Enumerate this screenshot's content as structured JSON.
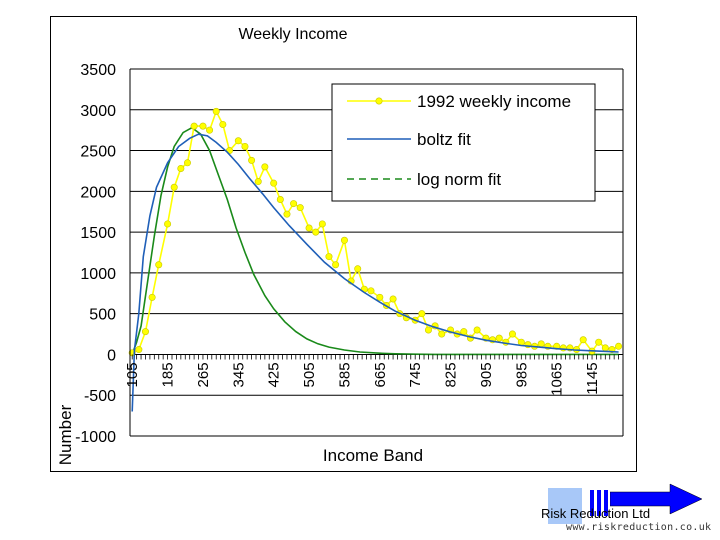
{
  "chart_data": {
    "type": "line",
    "title": "Weekly Income",
    "xlabel": "Income Band",
    "ylabel": "Number",
    "ylim": [
      -1000,
      3500
    ],
    "yticks": [
      3500,
      3000,
      2500,
      2000,
      1500,
      1000,
      500,
      0,
      -500,
      -1000
    ],
    "grid": "horizontal",
    "legend_position": "top-right",
    "xtick_labels": [
      "105",
      "185",
      "265",
      "345",
      "425",
      "505",
      "585",
      "665",
      "745",
      "825",
      "905",
      "985",
      "1065",
      "1145"
    ],
    "xticks": [
      105,
      185,
      265,
      345,
      425,
      505,
      585,
      665,
      745,
      825,
      905,
      985,
      1065,
      1145
    ],
    "xlim": [
      100,
      1215
    ],
    "series": [
      {
        "name": "1992 weekly income",
        "color": "#ffff00",
        "marker": "circle",
        "x": [
          105,
          120,
          135,
          150,
          165,
          185,
          200,
          215,
          230,
          245,
          265,
          280,
          295,
          310,
          325,
          345,
          360,
          375,
          390,
          405,
          425,
          440,
          455,
          470,
          485,
          505,
          520,
          535,
          550,
          565,
          585,
          600,
          615,
          630,
          645,
          665,
          680,
          695,
          710,
          725,
          745,
          760,
          775,
          790,
          805,
          825,
          840,
          855,
          870,
          885,
          905,
          920,
          935,
          950,
          965,
          985,
          1000,
          1015,
          1030,
          1045,
          1065,
          1080,
          1095,
          1110,
          1125,
          1145,
          1160,
          1175,
          1190,
          1205
        ],
        "values": [
          20,
          60,
          280,
          700,
          1100,
          1600,
          2050,
          2280,
          2350,
          2800,
          2800,
          2750,
          2980,
          2820,
          2500,
          2620,
          2550,
          2380,
          2120,
          2300,
          2100,
          1900,
          1720,
          1850,
          1800,
          1550,
          1500,
          1600,
          1200,
          1100,
          1400,
          900,
          1050,
          800,
          780,
          700,
          600,
          680,
          500,
          450,
          420,
          500,
          300,
          350,
          250,
          300,
          250,
          280,
          200,
          300,
          200,
          180,
          200,
          150,
          250,
          150,
          120,
          100,
          130,
          100,
          100,
          80,
          80,
          60,
          180,
          40,
          150,
          80,
          60,
          100
        ]
      },
      {
        "name": "boltz fit",
        "color": "#1f5fb8",
        "x": [
          105,
          110,
          120,
          130,
          145,
          160,
          185,
          210,
          235,
          255,
          275,
          295,
          320,
          345,
          370,
          400,
          425,
          460,
          500,
          540,
          585,
          630,
          665,
          700,
          745,
          785,
          825,
          865,
          905,
          945,
          985,
          1025,
          1065,
          1105,
          1145,
          1185,
          1205
        ],
        "values": [
          -700,
          50,
          500,
          1200,
          1700,
          2050,
          2350,
          2550,
          2650,
          2700,
          2680,
          2600,
          2480,
          2330,
          2160,
          1970,
          1800,
          1580,
          1350,
          1130,
          930,
          760,
          640,
          530,
          420,
          340,
          275,
          220,
          175,
          140,
          110,
          90,
          70,
          55,
          45,
          35,
          30
        ]
      },
      {
        "name": "log norm fit",
        "color": "#1a8a1a",
        "x": [
          105,
          115,
          125,
          140,
          155,
          170,
          185,
          200,
          220,
          240,
          260,
          280,
          300,
          320,
          340,
          360,
          380,
          405,
          425,
          450,
          475,
          500,
          525,
          550,
          585,
          620,
          665,
          700,
          745,
          790,
          825,
          865,
          905,
          985,
          1065,
          1145,
          1205
        ],
        "values": [
          0,
          150,
          350,
          900,
          1450,
          1950,
          2300,
          2550,
          2720,
          2780,
          2700,
          2500,
          2200,
          1900,
          1550,
          1250,
          980,
          720,
          560,
          400,
          280,
          190,
          130,
          90,
          55,
          30,
          15,
          8,
          3,
          1,
          0,
          0,
          0,
          0,
          0,
          0,
          0
        ]
      }
    ]
  },
  "branding": {
    "company": "Risk Reduction Ltd",
    "url": "www.riskreduction.co.uk",
    "box_color": "#a8c8f8",
    "arrow_color": "#0000ff"
  }
}
